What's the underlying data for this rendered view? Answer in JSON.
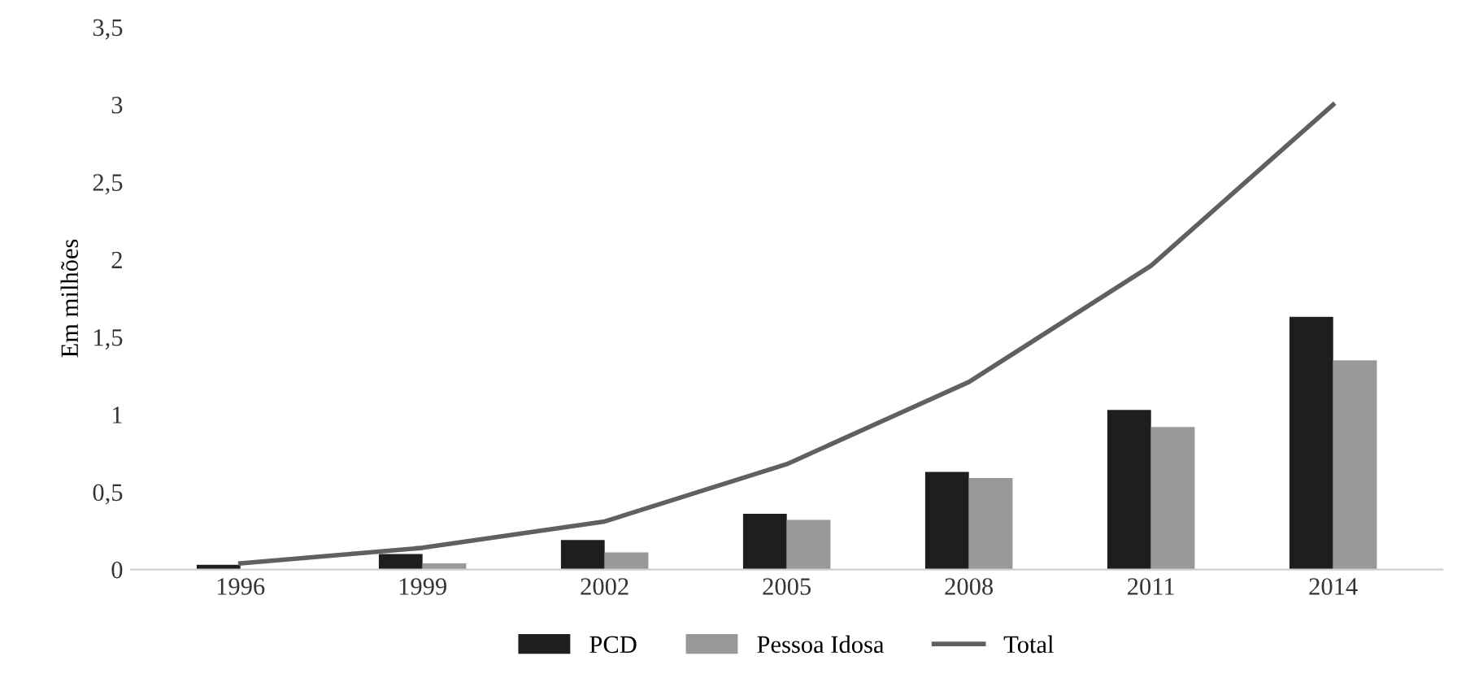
{
  "chart_data": {
    "type": "bar",
    "ylabel": "Em milhões",
    "categories": [
      "1996",
      "1999",
      "2002",
      "2005",
      "2008",
      "2011",
      "2014"
    ],
    "series": [
      {
        "name": "PCD",
        "color": "#1e1e1e",
        "values": [
          0.03,
          0.1,
          0.19,
          0.36,
          0.63,
          1.03,
          1.63
        ]
      },
      {
        "name": "Pessoa Idosa",
        "color": "#999999",
        "values": [
          null,
          0.04,
          0.11,
          0.32,
          0.59,
          0.92,
          1.35
        ]
      },
      {
        "name": "Total",
        "type": "line",
        "color": "#606060",
        "values": [
          0.04,
          0.14,
          0.31,
          0.68,
          1.21,
          1.96,
          3.0
        ]
      }
    ],
    "ylim": [
      0,
      3.5
    ],
    "yticks": [
      {
        "value": 0,
        "label": "0"
      },
      {
        "value": 0.5,
        "label": "0,5"
      },
      {
        "value": 1,
        "label": "1"
      },
      {
        "value": 1.5,
        "label": "1,5"
      },
      {
        "value": 2,
        "label": "2"
      },
      {
        "value": 2.5,
        "label": "2,5"
      },
      {
        "value": 3,
        "label": "3"
      },
      {
        "value": 3.5,
        "label": "3,5"
      }
    ],
    "legend": "bottom",
    "grid": false
  }
}
